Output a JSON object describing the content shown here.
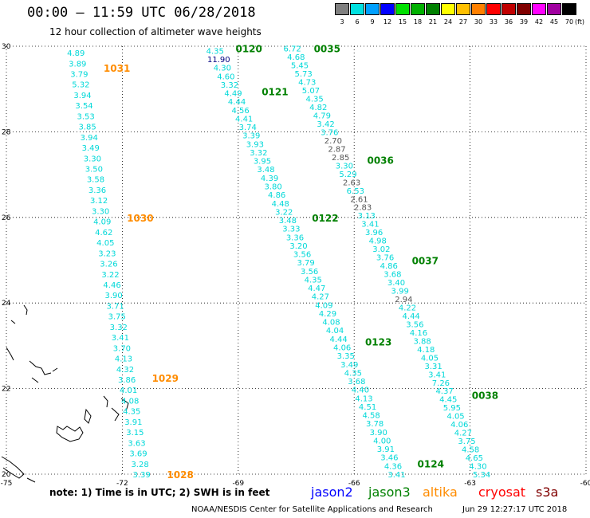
{
  "header": {
    "title": "00:00 – 11:59 UTC 06/28/2018",
    "subtitle": "12 hour collection of altimeter wave heights"
  },
  "color_scale": {
    "unit": "(ft)",
    "bins": [
      {
        "label": "3",
        "color": "#808080"
      },
      {
        "label": "6",
        "color": "#00e0e0"
      },
      {
        "label": "9",
        "color": "#00a0ff"
      },
      {
        "label": "12",
        "color": "#0000ff"
      },
      {
        "label": "15",
        "color": "#00e000"
      },
      {
        "label": "18",
        "color": "#00b000"
      },
      {
        "label": "21",
        "color": "#008000"
      },
      {
        "label": "24",
        "color": "#ffff00"
      },
      {
        "label": "27",
        "color": "#ffc000"
      },
      {
        "label": "30",
        "color": "#ff8000"
      },
      {
        "label": "33",
        "color": "#ff0000"
      },
      {
        "label": "36",
        "color": "#c00000"
      },
      {
        "label": "39",
        "color": "#800000"
      },
      {
        "label": "42",
        "color": "#ff00ff"
      },
      {
        "label": "45",
        "color": "#a000a0"
      },
      {
        "label": "70",
        "color": "#000000"
      }
    ]
  },
  "axes": {
    "lon_ticks": [
      "-75",
      "-72",
      "-69",
      "-66",
      "-63",
      "-60"
    ],
    "lat_ticks": [
      "30",
      "28",
      "26",
      "24",
      "22",
      "20"
    ]
  },
  "map_extent": {
    "lon": [
      -75,
      -60
    ],
    "lat": [
      20,
      30
    ]
  },
  "colors": {
    "cyan": "#00d8d8",
    "gray": "#555555",
    "blue": "#000080",
    "jason3": "#008000",
    "altika": "#ff8c00"
  },
  "tracks": [
    {
      "time_labels": [
        {
          "text": "1031",
          "lat": 29.5,
          "lon_offset": 1.0
        },
        {
          "text": "1030",
          "lat": 26.0,
          "lon_offset": 1.0
        },
        {
          "text": "1029",
          "lat": 22.25,
          "lon_offset": 1.0
        },
        {
          "text": "1028",
          "lat": 20.0,
          "lon_offset": 1.0
        }
      ],
      "label_color": "altika",
      "path": [
        [
          -73.2,
          29.85
        ],
        [
          -71.5,
          20.0
        ]
      ],
      "values": [
        "4.89",
        "3.89",
        "3.79",
        "5.32",
        "3.94",
        "3.54",
        "3.53",
        "3.85",
        "3.94",
        "3.49",
        "3.30",
        "3.50",
        "3.58",
        "3.36",
        "3.12",
        "3.30",
        "4.09",
        "4.62",
        "4.05",
        "3.23",
        "3.26",
        "3.22",
        "4.46",
        "3.90",
        "3.71",
        "3.75",
        "3.32",
        "3.41",
        "3.70",
        "4.13",
        "4.32",
        "3.86",
        "4.01",
        "4.08",
        "4.35",
        "3.91",
        "3.15",
        "3.63",
        "3.69",
        "3.28",
        "3.39"
      ],
      "value_colors": {}
    },
    {
      "time_labels": [
        {
          "text": "0120",
          "lat": 29.95,
          "lon_offset": 0.9
        },
        {
          "text": "0121",
          "lat": 28.95,
          "lon_offset": 1.1
        },
        {
          "text": "0122",
          "lat": 26.0,
          "lon_offset": 1.0
        },
        {
          "text": "0123",
          "lat": 23.1,
          "lon_offset": 1.0
        },
        {
          "text": "0124",
          "lat": 20.25,
          "lon_offset": 1.0
        }
      ],
      "label_color": "jason3",
      "path": [
        [
          -69.6,
          29.9
        ],
        [
          -64.9,
          20.0
        ]
      ],
      "values": [
        "4.35",
        "11.90",
        "4.30",
        "4.60",
        "3.32",
        "4.49",
        "4.44",
        "4.56",
        "4.41",
        "3.74",
        "3.39",
        "3.93",
        "3.32",
        "3.95",
        "3.48",
        "4.39",
        "3.80",
        "4.86",
        "4.48",
        "3.22",
        "3.48",
        "3.33",
        "3.36",
        "3.20",
        "3.56",
        "3.79",
        "3.56",
        "4.35",
        "4.47",
        "4.27",
        "4.09",
        "4.29",
        "4.08",
        "4.04",
        "4.44",
        "4.06",
        "3.35",
        "3.49",
        "4.35",
        "3.68",
        "4.40",
        "4.13",
        "4.51",
        "4.58",
        "3.78",
        "3.90",
        "4.00",
        "3.91",
        "3.46",
        "4.36",
        "3.41"
      ],
      "value_colors": {
        "1": "blue"
      }
    },
    {
      "time_labels": [
        {
          "text": "0035",
          "lat": 29.95,
          "lon_offset": 0.9
        },
        {
          "text": "0036",
          "lat": 27.35,
          "lon_offset": 1.0
        },
        {
          "text": "0037",
          "lat": 25.0,
          "lon_offset": 1.0
        },
        {
          "text": "0038",
          "lat": 21.85,
          "lon_offset": 1.0
        }
      ],
      "label_color": "jason3",
      "path": [
        [
          -67.6,
          29.95
        ],
        [
          -62.7,
          20.0
        ]
      ],
      "values": [
        "6.72",
        "4.68",
        "5.45",
        "5.73",
        "4.73",
        "5.07",
        "4.35",
        "4.82",
        "4.79",
        "3.42",
        "3.76",
        "2.70",
        "2.87",
        "2.85",
        "3.30",
        "5.29",
        "2.63",
        "6.53",
        "2.61",
        "2.83",
        "3.13",
        "3.41",
        "3.96",
        "4.98",
        "3.02",
        "3.76",
        "4.86",
        "3.68",
        "3.40",
        "3.99",
        "2.94",
        "4.22",
        "4.44",
        "3.56",
        "4.16",
        "3.88",
        "4.18",
        "4.05",
        "3.31",
        "3.41",
        "7.26",
        "4.37",
        "4.45",
        "5.95",
        "4.05",
        "4.06",
        "4.27",
        "3.75",
        "4.58",
        "4.65",
        "4.30",
        "5.34"
      ],
      "value_colors": {
        "11": "gray",
        "12": "gray",
        "13": "gray",
        "16": "gray",
        "18": "gray",
        "19": "gray",
        "30": "gray"
      }
    }
  ],
  "legend": {
    "note": "note: 1) Time is in UTC; 2) SWH is in feet",
    "items": [
      {
        "label": "jason2",
        "color": "#0000ff"
      },
      {
        "label": "jason3",
        "color": "#008000"
      },
      {
        "label": "altika",
        "color": "#ff8c00"
      },
      {
        "label": "cryosat",
        "color": "#ff0000"
      },
      {
        "label": "s3a",
        "color": "#800000"
      }
    ]
  },
  "footer": {
    "credit": "NOAA/NESDIS Center for Satellite Applications and Research",
    "timestamp": "Jun 29 12:27:17 UTC 2018"
  }
}
